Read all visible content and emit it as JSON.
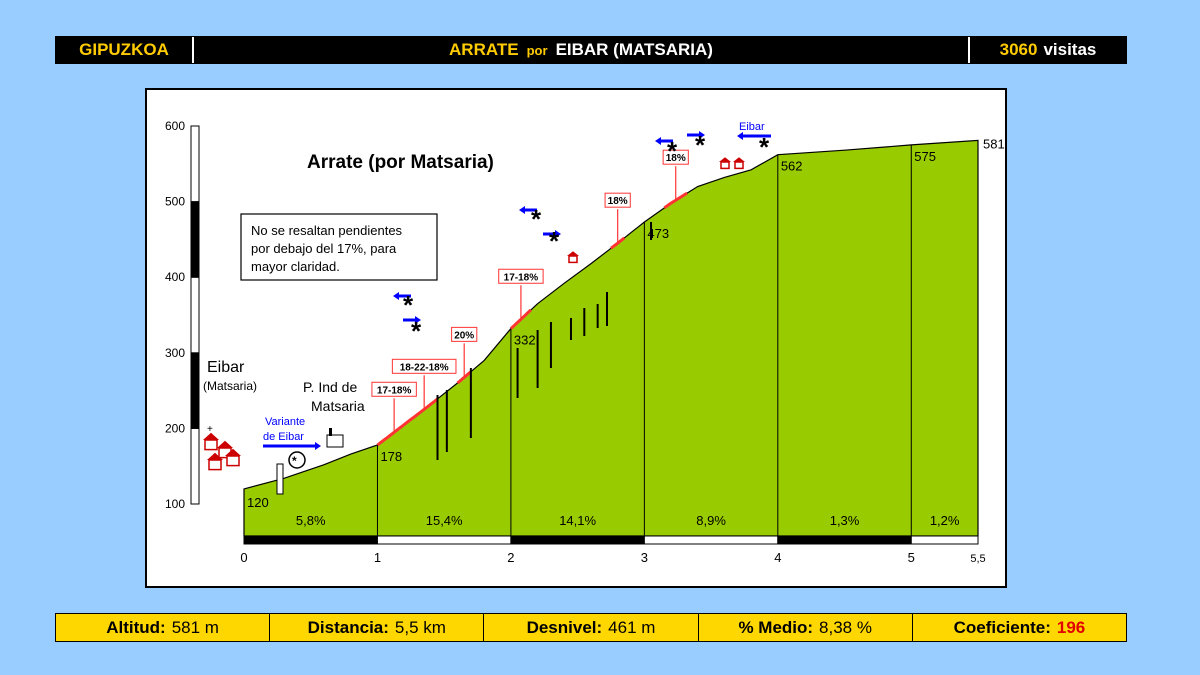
{
  "header": {
    "region": "GIPUZKOA",
    "climb": "ARRATE",
    "por": "por",
    "start": "EIBAR (MATSARIA)",
    "visits_count": "3060",
    "visits_label": "visitas"
  },
  "chart_data": {
    "type": "area",
    "title": "Arrate (por Matsaria)",
    "note_lines": [
      "No se resaltan pendientes",
      "por debajo del 17%, para",
      "mayor claridad."
    ],
    "x_ticks": [
      "0",
      "1",
      "2",
      "3",
      "4",
      "5",
      "5,5"
    ],
    "y_ticks": [
      "100",
      "200",
      "300",
      "400",
      "500",
      "600"
    ],
    "xlim": [
      0,
      5.5
    ],
    "ylim": [
      100,
      600
    ],
    "km_points": [
      0,
      1,
      2,
      3,
      4,
      5,
      5.5
    ],
    "altitudes": [
      120,
      178,
      332,
      473,
      562,
      575,
      581
    ],
    "altitude_labels": [
      "120",
      "178",
      "332",
      "473",
      "562",
      "575",
      "581"
    ],
    "segment_gradients": [
      "5,8%",
      "15,4%",
      "14,1%",
      "8,9%",
      "1,3%",
      "1,2%"
    ],
    "profile": [
      [
        0,
        120
      ],
      [
        0.3,
        134
      ],
      [
        0.6,
        152
      ],
      [
        0.8,
        166
      ],
      [
        1.0,
        178
      ],
      [
        1.2,
        205
      ],
      [
        1.4,
        232
      ],
      [
        1.6,
        260
      ],
      [
        1.8,
        290
      ],
      [
        2.0,
        332
      ],
      [
        2.2,
        365
      ],
      [
        2.4,
        392
      ],
      [
        2.6,
        418
      ],
      [
        2.8,
        445
      ],
      [
        3.0,
        473
      ],
      [
        3.2,
        498
      ],
      [
        3.4,
        520
      ],
      [
        3.6,
        532
      ],
      [
        3.8,
        542
      ],
      [
        4.0,
        562
      ],
      [
        4.5,
        568
      ],
      [
        5.0,
        575
      ],
      [
        5.5,
        581
      ]
    ],
    "steep_sections": [
      {
        "label": "17-18%",
        "x": [
          1.0,
          1.25
        ]
      },
      {
        "label": "18-22-18%",
        "x": [
          1.25,
          1.45
        ]
      },
      {
        "label": "20%",
        "x": [
          1.6,
          1.7
        ]
      },
      {
        "label": "17-18%",
        "x": [
          2.0,
          2.15
        ]
      },
      {
        "label": "18%",
        "x": [
          2.75,
          2.85
        ]
      },
      {
        "label": "18%",
        "x": [
          3.15,
          3.32
        ]
      }
    ],
    "annotations": {
      "town": "Eibar",
      "town_sub": "(Matsaria)",
      "industrial_l1": "P. Ind de",
      "industrial_l2": "Matsaria",
      "variante_l1": "Variante",
      "variante_l2": "de Eibar",
      "eibar_arrow": "Eibar"
    }
  },
  "footer": {
    "altitud_label": "Altitud:",
    "altitud_value": "581 m",
    "distancia_label": "Distancia:",
    "distancia_value": "5,5 km",
    "desnivel_label": "Desnivel:",
    "desnivel_value": "461 m",
    "medio_label": "% Medio:",
    "medio_value": "8,38 %",
    "coef_label": "Coeficiente:",
    "coef_value": "196"
  },
  "colors": {
    "background": "#99ccff",
    "profile_fill": "#99cc00",
    "steep": "#ff3333",
    "arrow": "#0000ff",
    "footer": "#ffd700"
  }
}
